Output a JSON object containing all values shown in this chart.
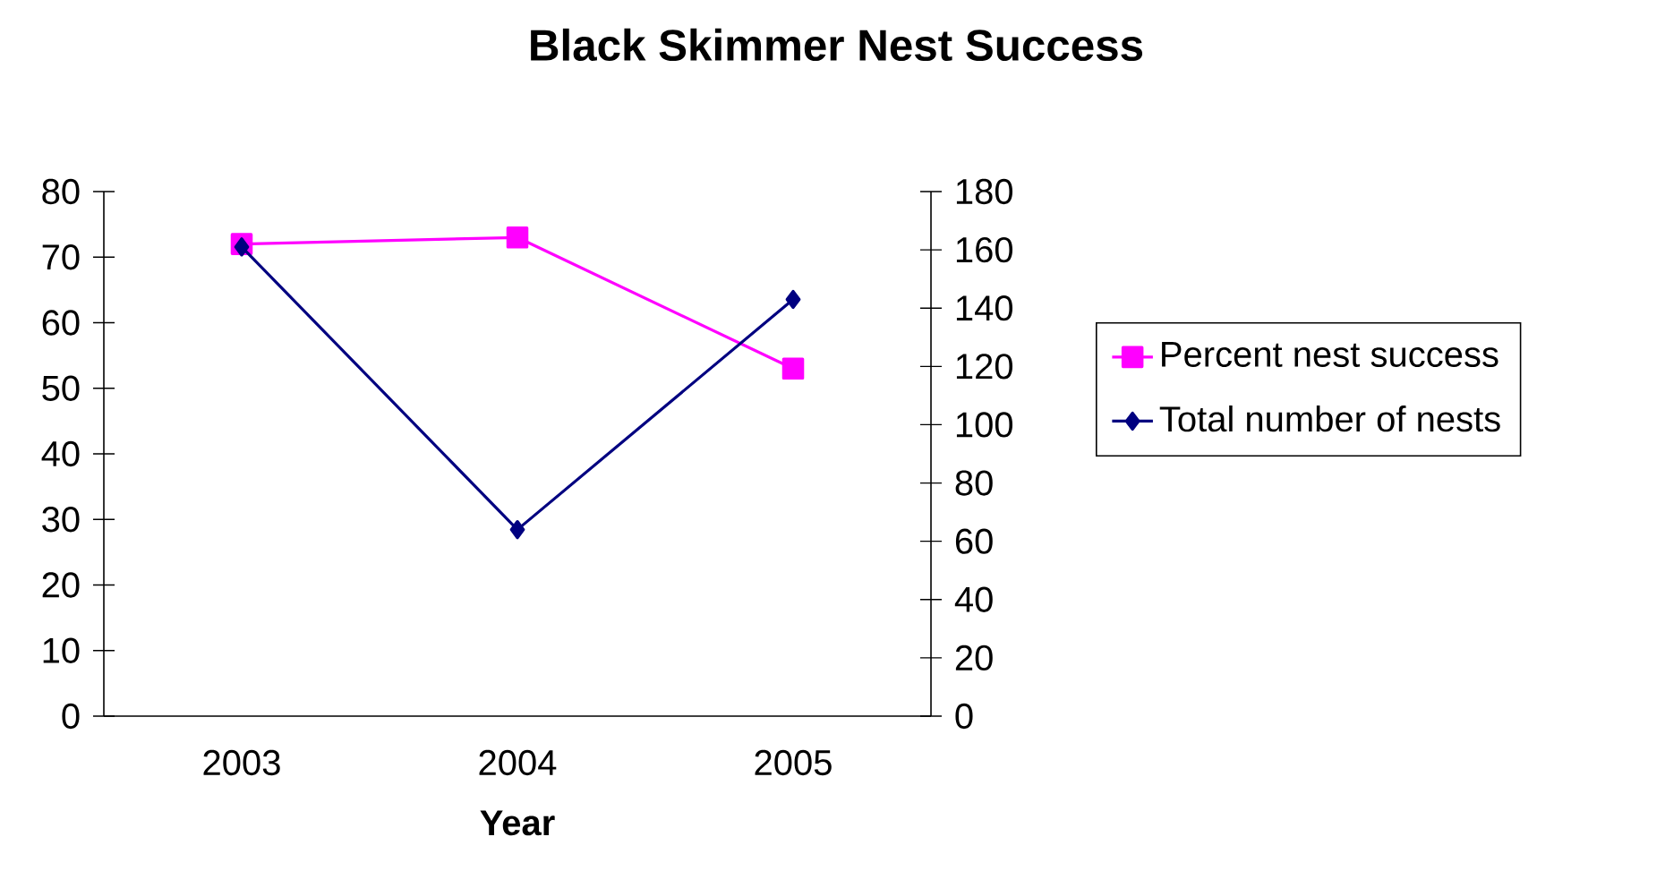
{
  "chart_data": {
    "type": "line",
    "title": "Black Skimmer Nest Success",
    "xlabel": "Year",
    "categories": [
      "2003",
      "2004",
      "2005"
    ],
    "series": [
      {
        "name": "Percent nest success",
        "color": "#ff00ff",
        "marker": "square",
        "values": [
          72,
          73,
          53
        ]
      },
      {
        "name": "Total number of nests",
        "color": "#000080",
        "marker": "diamond",
        "axis": "y2",
        "values": [
          161,
          64,
          143
        ]
      }
    ],
    "ylim": [
      0,
      80
    ],
    "yticks": [
      0,
      10,
      20,
      30,
      40,
      50,
      60,
      70,
      80
    ],
    "y2lim": [
      0,
      180
    ],
    "y2ticks": [
      0,
      20,
      40,
      60,
      80,
      100,
      120,
      140,
      160,
      180
    ],
    "legend": "right",
    "grid": false
  }
}
